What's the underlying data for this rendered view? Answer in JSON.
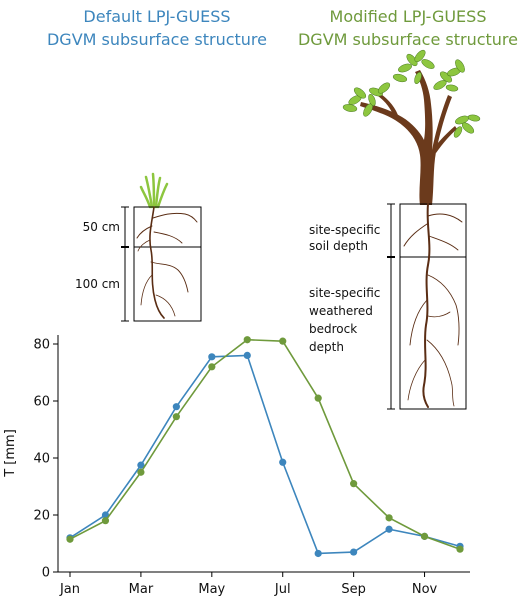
{
  "titles": {
    "default_line1": "Default LPJ-GUESS",
    "default_line2": "DGVM subsurface structure",
    "modified_line1": "Modified LPJ-GUESS",
    "modified_line2": "DGVM subsurface structure"
  },
  "default_labels": {
    "top_depth": "50 cm",
    "bottom_depth": "100 cm"
  },
  "modified_labels": {
    "soil_line1": "site-specific",
    "soil_line2": "soil depth",
    "bedrock_line1": "site-specific",
    "bedrock_line2": "weathered",
    "bedrock_line3": "bedrock",
    "bedrock_line4": "depth"
  },
  "colors": {
    "default": "#3d86bd",
    "modified": "#6f9a3c",
    "root": "#5a2d14",
    "trunk": "#6b3a1c",
    "leaf": "#8dc63f"
  },
  "chart_data": {
    "type": "line",
    "ylabel": "T [mm]",
    "x_ticks": [
      "Jan",
      "Mar",
      "May",
      "Jul",
      "Sep",
      "Nov"
    ],
    "x": [
      1,
      2,
      3,
      4,
      5,
      6,
      7,
      8,
      9,
      10,
      11,
      12
    ],
    "ylim": [
      0,
      85
    ],
    "y_ticks": [
      "0",
      "20",
      "40",
      "60",
      "80"
    ],
    "series": [
      {
        "color": "#3d86bd",
        "values": [
          12,
          20,
          37.5,
          58,
          75.5,
          76,
          38.5,
          6.5,
          7,
          15,
          12.5,
          9
        ]
      },
      {
        "color": "#6f9a3c",
        "values": [
          11.5,
          18,
          35,
          54.5,
          72,
          81.5,
          81,
          61,
          31,
          19,
          12.5,
          8
        ]
      }
    ]
  }
}
